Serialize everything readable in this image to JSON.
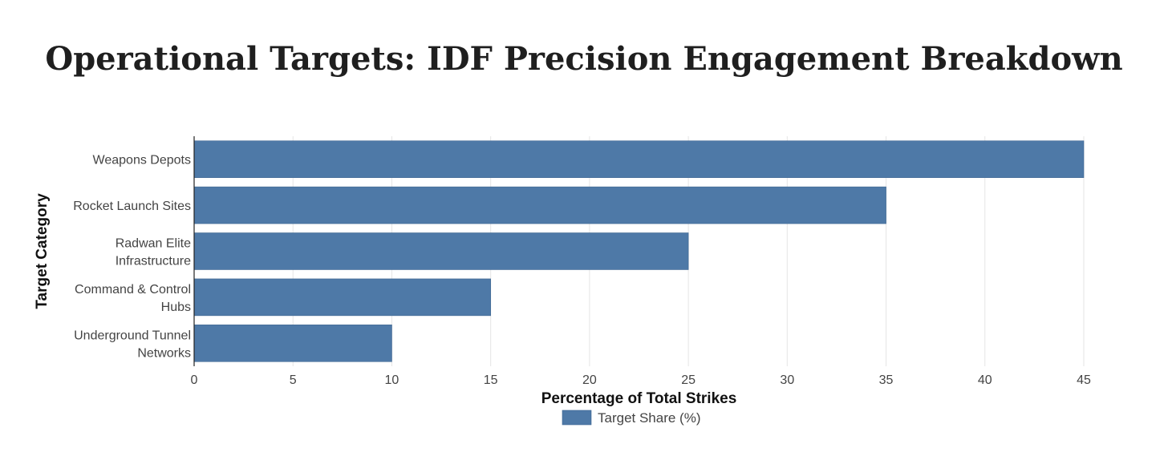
{
  "chart_data": {
    "type": "bar",
    "orientation": "horizontal",
    "title": "Operational Targets: IDF Precision Engagement Breakdown",
    "categories": [
      [
        "Weapons Depots"
      ],
      [
        "Rocket Launch Sites"
      ],
      [
        "Radwan Elite",
        "Infrastructure"
      ],
      [
        "Command & Control",
        "Hubs"
      ],
      [
        "Underground Tunnel",
        "Networks"
      ]
    ],
    "series": [
      {
        "name": "Target Share (%)",
        "values": [
          45,
          35,
          25,
          15,
          10
        ],
        "color": "#4e79a7"
      }
    ],
    "xlabel": "Percentage of Total Strikes",
    "ylabel": "Target Category",
    "xlim": [
      0,
      45
    ],
    "xticks": [
      0,
      5,
      10,
      15,
      20,
      25,
      30,
      35,
      40,
      45
    ],
    "grid": true,
    "legend": "bottom-center"
  }
}
